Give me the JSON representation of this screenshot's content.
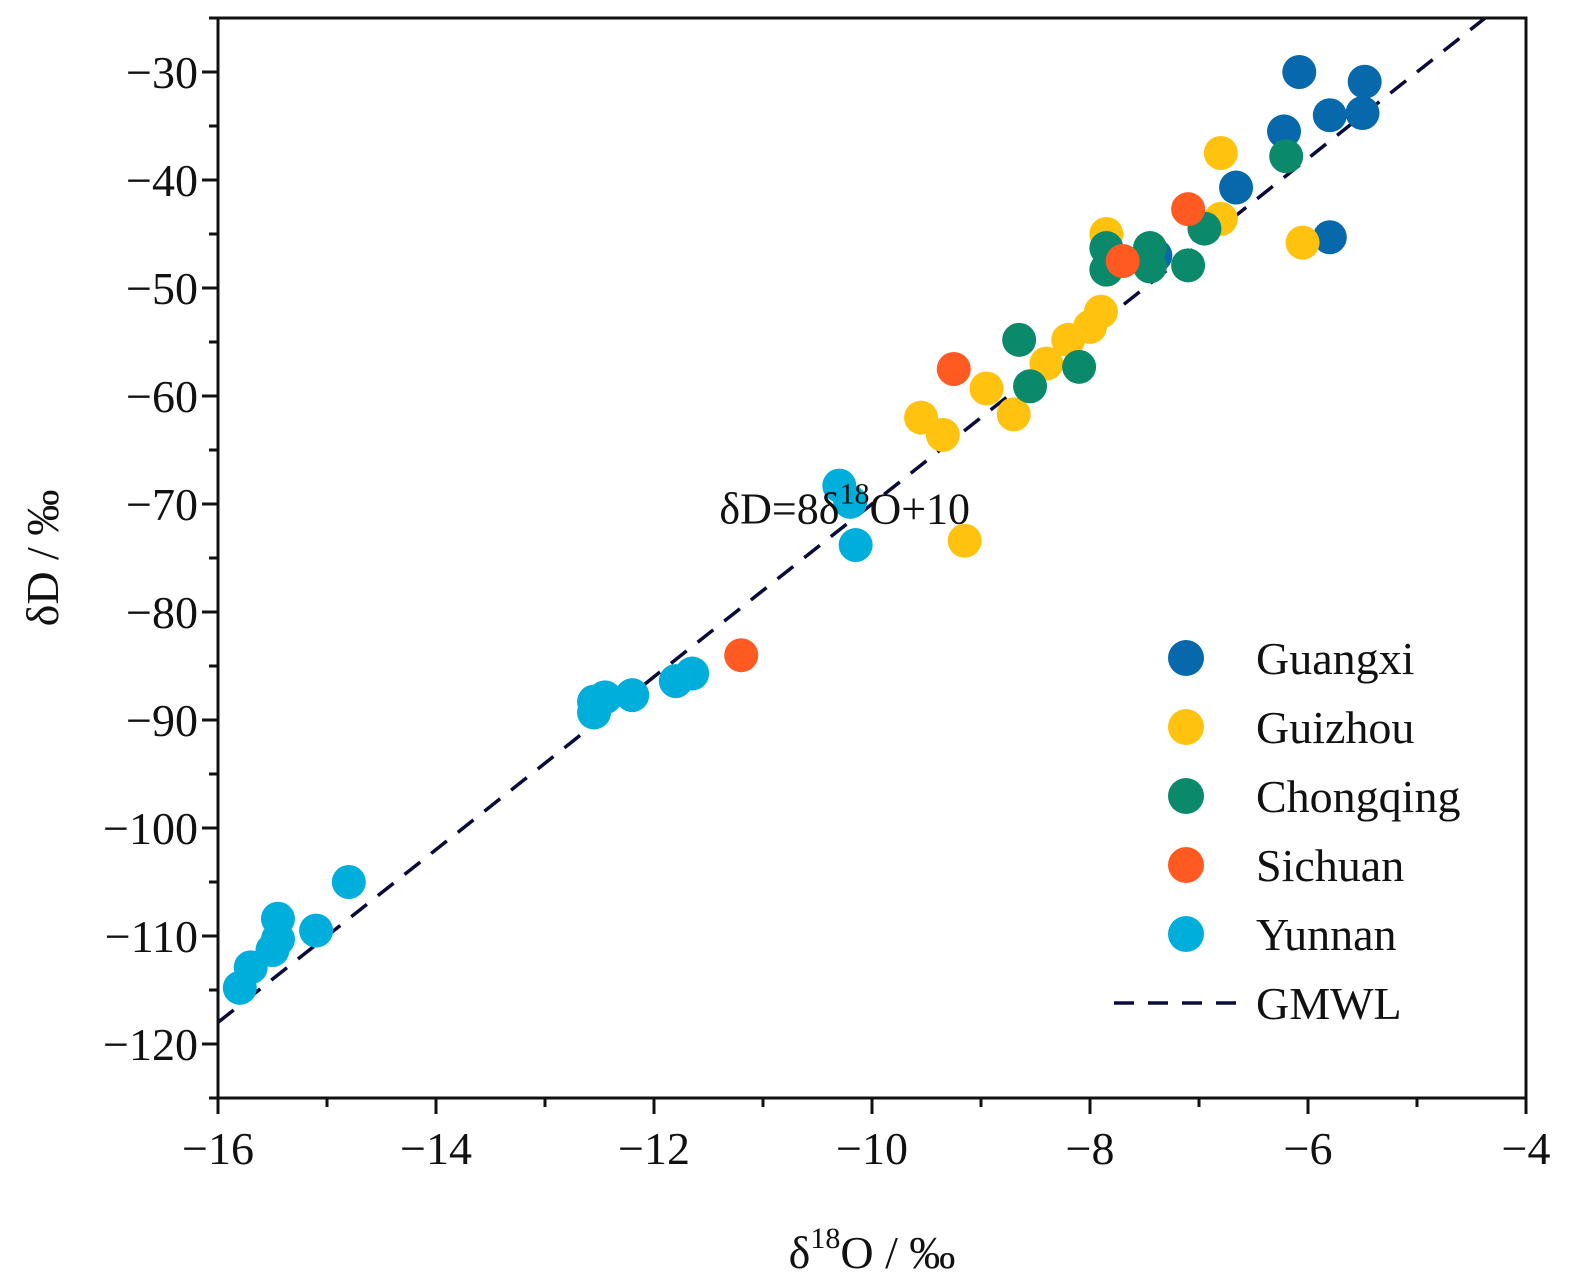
{
  "chart_data": {
    "type": "scatter",
    "title": "",
    "xlabel_main": "δ",
    "xlabel_sup": "18",
    "xlabel_rest": "O / ‰",
    "ylabel": "δD / ‰",
    "xlim": [
      -16,
      -4
    ],
    "ylim": [
      -125,
      -25
    ],
    "x_ticks": [
      -16,
      -14,
      -12,
      -10,
      -8,
      -6,
      -4
    ],
    "x_tick_labels": [
      "−16",
      "−14",
      "−12",
      "−10",
      "−8",
      "−6",
      "−4"
    ],
    "y_ticks": [
      -120,
      -110,
      -100,
      -90,
      -80,
      -70,
      -60,
      -50,
      -40,
      -30
    ],
    "y_tick_labels": [
      "−120",
      "−110",
      "−100",
      "−90",
      "−80",
      "−70",
      "−60",
      "−50",
      "−40",
      "−30"
    ],
    "equation": {
      "pre": "δD=8δ",
      "sup": "18",
      "post": "O+10",
      "x": -11.4,
      "y": -71.8
    },
    "legend_position": "bottom-right",
    "series": [
      {
        "name": "Guangxi",
        "color": "#0868ac",
        "points": [
          [
            -6.08,
            -30.0
          ],
          [
            -5.48,
            -30.9
          ],
          [
            -6.22,
            -35.5
          ],
          [
            -5.8,
            -34.0
          ],
          [
            -5.5,
            -33.8
          ],
          [
            -6.66,
            -40.7
          ],
          [
            -5.8,
            -45.3
          ],
          [
            -7.4,
            -47.0
          ]
        ]
      },
      {
        "name": "Guizhou",
        "color": "#ffc20e",
        "points": [
          [
            -6.8,
            -37.5
          ],
          [
            -6.8,
            -43.6
          ],
          [
            -6.05,
            -45.8
          ],
          [
            -7.85,
            -45.0
          ],
          [
            -7.9,
            -52.2
          ],
          [
            -8.0,
            -53.6
          ],
          [
            -8.2,
            -54.8
          ],
          [
            -8.4,
            -57.0
          ],
          [
            -8.95,
            -59.3
          ],
          [
            -9.55,
            -62.0
          ],
          [
            -9.35,
            -63.6
          ],
          [
            -8.7,
            -61.7
          ],
          [
            -9.15,
            -73.4
          ]
        ]
      },
      {
        "name": "Chongqing",
        "color": "#0a8a6a",
        "points": [
          [
            -6.2,
            -37.8
          ],
          [
            -6.95,
            -44.5
          ],
          [
            -7.1,
            -47.9
          ],
          [
            -7.45,
            -46.3
          ],
          [
            -7.45,
            -48.0
          ],
          [
            -7.85,
            -46.3
          ],
          [
            -7.85,
            -48.3
          ],
          [
            -8.65,
            -54.8
          ],
          [
            -8.55,
            -59.1
          ],
          [
            -8.1,
            -57.3
          ]
        ]
      },
      {
        "name": "Sichuan",
        "color": "#ff5a22",
        "points": [
          [
            -7.1,
            -42.7
          ],
          [
            -7.7,
            -47.5
          ],
          [
            -9.25,
            -57.5
          ],
          [
            -11.2,
            -84.0
          ]
        ]
      },
      {
        "name": "Yunnan",
        "color": "#00aedb",
        "points": [
          [
            -10.3,
            -68.3
          ],
          [
            -10.2,
            -69.8
          ],
          [
            -10.15,
            -73.8
          ],
          [
            -11.65,
            -85.7
          ],
          [
            -11.8,
            -86.4
          ],
          [
            -12.2,
            -87.7
          ],
          [
            -12.45,
            -87.9
          ],
          [
            -12.55,
            -88.3
          ],
          [
            -12.55,
            -89.3
          ],
          [
            -14.8,
            -105.0
          ],
          [
            -15.1,
            -109.5
          ],
          [
            -15.45,
            -108.4
          ],
          [
            -15.45,
            -110.3
          ],
          [
            -15.5,
            -111.3
          ],
          [
            -15.7,
            -112.9
          ],
          [
            -15.8,
            -114.8
          ]
        ]
      }
    ],
    "gmwl": {
      "name": "GMWL",
      "slope": 8,
      "intercept": 10,
      "color": "#0b0b3b",
      "x_range": [
        -16,
        -4
      ]
    }
  }
}
